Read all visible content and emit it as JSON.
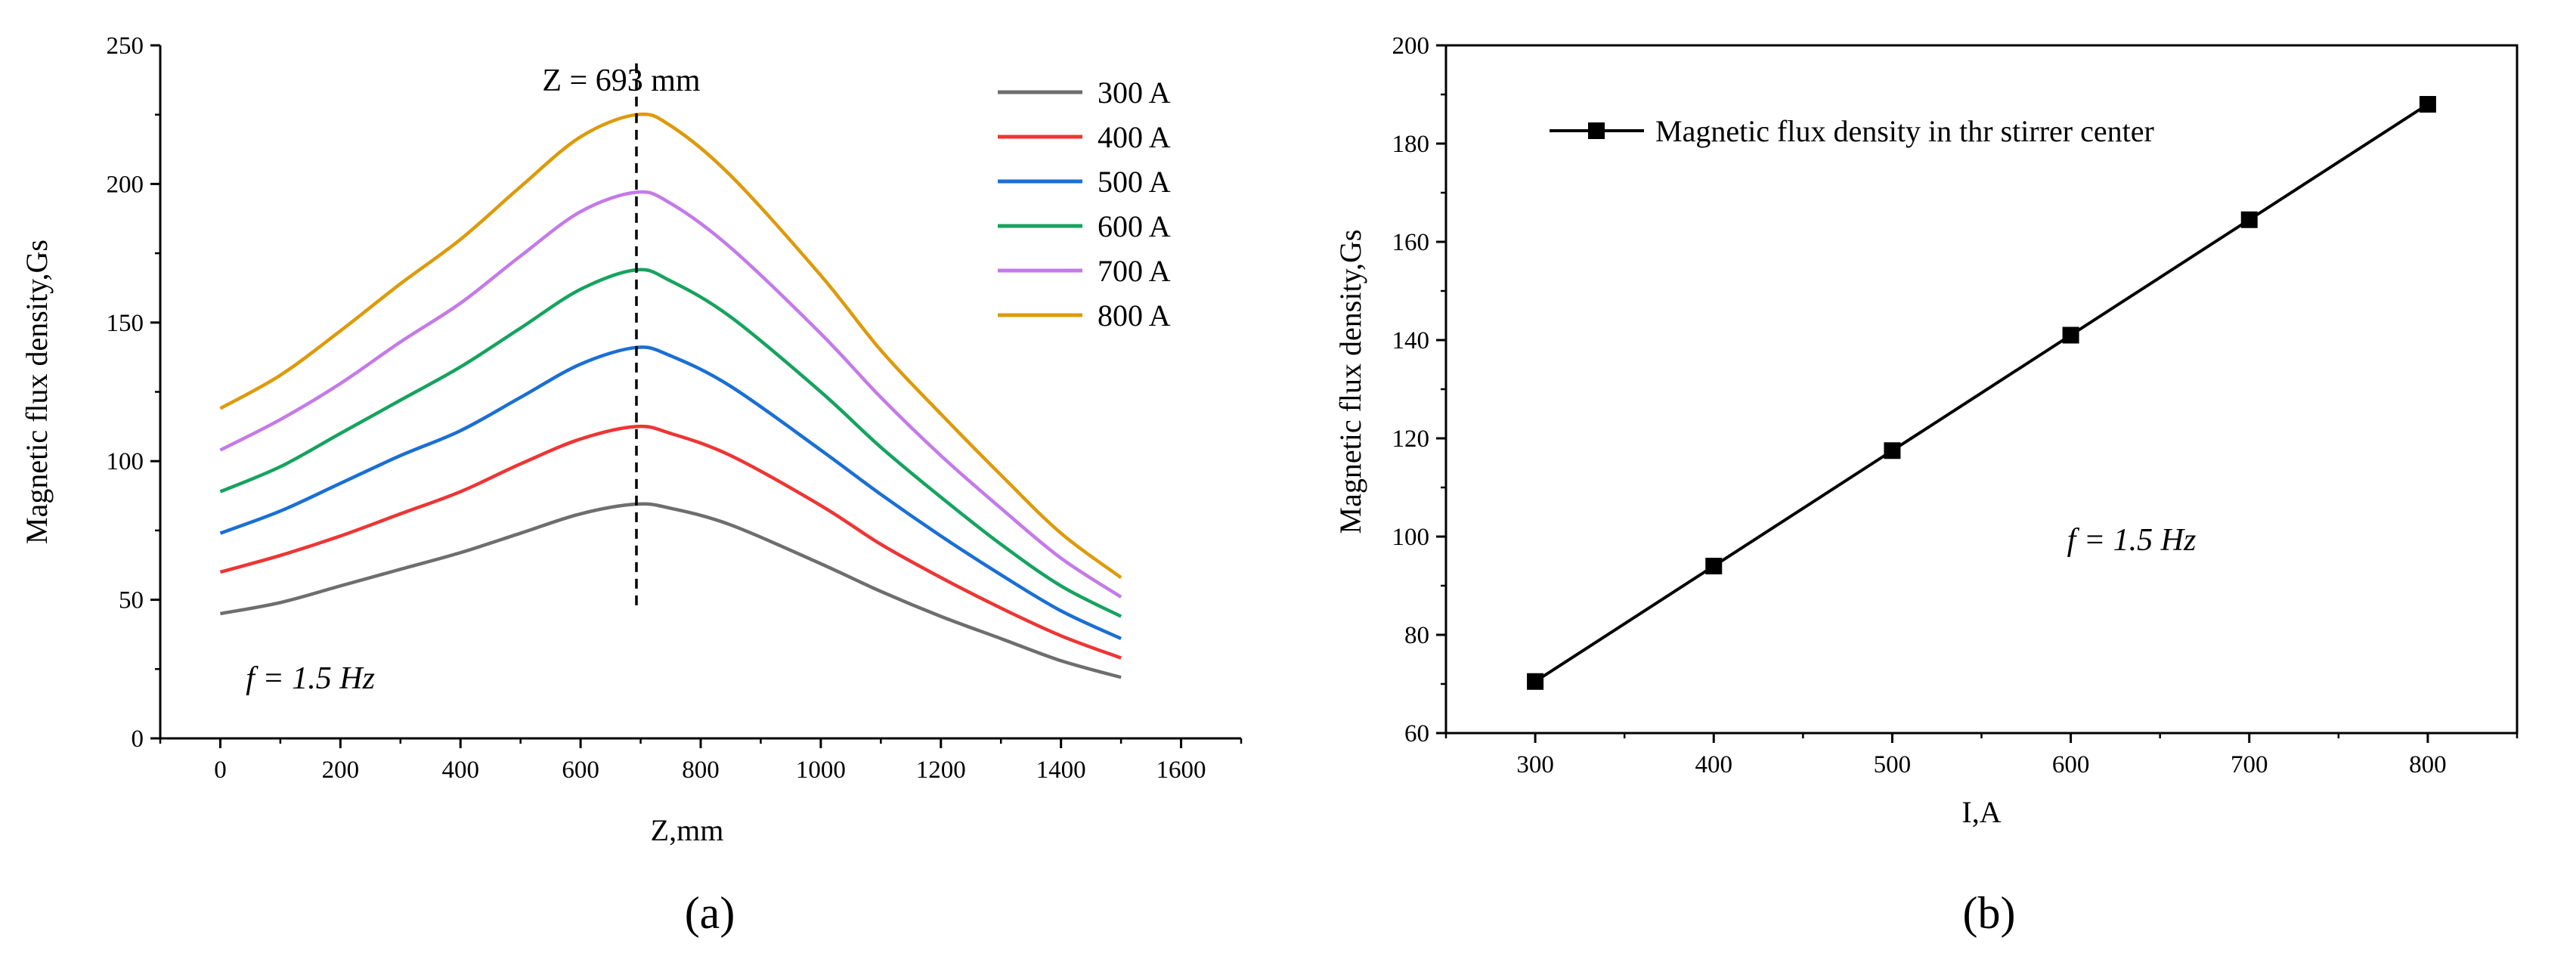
{
  "chart_data": [
    {
      "type": "line",
      "panel_label": "(a)",
      "xlabel": "Z,mm",
      "ylabel": "Magnetic flux density,Gs",
      "xlim": [
        -100,
        1700
      ],
      "ylim": [
        0,
        250
      ],
      "xticks": [
        0,
        200,
        400,
        600,
        800,
        1000,
        1200,
        1400,
        1600
      ],
      "yticks": [
        0,
        50,
        100,
        150,
        200,
        250
      ],
      "x": [
        0,
        100,
        200,
        300,
        400,
        500,
        600,
        693,
        750,
        850,
        1000,
        1100,
        1200,
        1300,
        1400,
        1500
      ],
      "series": [
        {
          "name": "300 A",
          "color": "#6e6e6e",
          "values": [
            45,
            49,
            55,
            61,
            67,
            74,
            81,
            84.5,
            83,
            77,
            63,
            53,
            44,
            36,
            28,
            22
          ]
        },
        {
          "name": "400 A",
          "color": "#ee3535",
          "values": [
            60,
            66,
            73,
            81,
            89,
            99,
            108,
            112.5,
            110,
            102,
            84,
            70,
            58,
            47,
            37,
            29
          ]
        },
        {
          "name": "500 A",
          "color": "#1a6fd4",
          "values": [
            74,
            82,
            92,
            102,
            111,
            123,
            135,
            141,
            138,
            127,
            104,
            88,
            73,
            59,
            46,
            36
          ]
        },
        {
          "name": "600 A",
          "color": "#16a35f",
          "values": [
            89,
            98,
            110,
            122,
            134,
            148,
            162,
            169,
            165,
            152,
            125,
            105,
            87,
            70,
            55,
            44
          ]
        },
        {
          "name": "700 A",
          "color": "#c47ae8",
          "values": [
            104,
            115,
            128,
            143,
            157,
            174,
            190,
            197,
            193,
            177,
            146,
            123,
            102,
            83,
            65,
            51
          ]
        },
        {
          "name": "800 A",
          "color": "#dd9a0a",
          "values": [
            119,
            131,
            147,
            164,
            180,
            199,
            217,
            225,
            221,
            203,
            167,
            140,
            117,
            95,
            74,
            58
          ]
        }
      ],
      "vline": {
        "x": 693,
        "y_from": 48,
        "y_to": 244,
        "label": "Z = 693 mm"
      },
      "annotation": "f = 1.5 Hz",
      "legend_position": "top-right"
    },
    {
      "type": "line",
      "panel_label": "(b)",
      "xlabel": "I,A",
      "ylabel": "Magnetic flux density,Gs",
      "xlim": [
        250,
        850
      ],
      "ylim": [
        60,
        200
      ],
      "xticks": [
        300,
        400,
        500,
        600,
        700,
        800
      ],
      "yticks": [
        60,
        80,
        100,
        120,
        140,
        160,
        180,
        200
      ],
      "series": [
        {
          "name": "Magnetic flux density in thr stirrer center",
          "color": "#000000",
          "marker": "square",
          "x": [
            300,
            400,
            500,
            600,
            700,
            800
          ],
          "values": [
            70.5,
            94,
            117.5,
            141,
            164.5,
            188
          ]
        }
      ],
      "annotation": "f = 1.5 Hz",
      "legend_position": "top-left"
    }
  ]
}
